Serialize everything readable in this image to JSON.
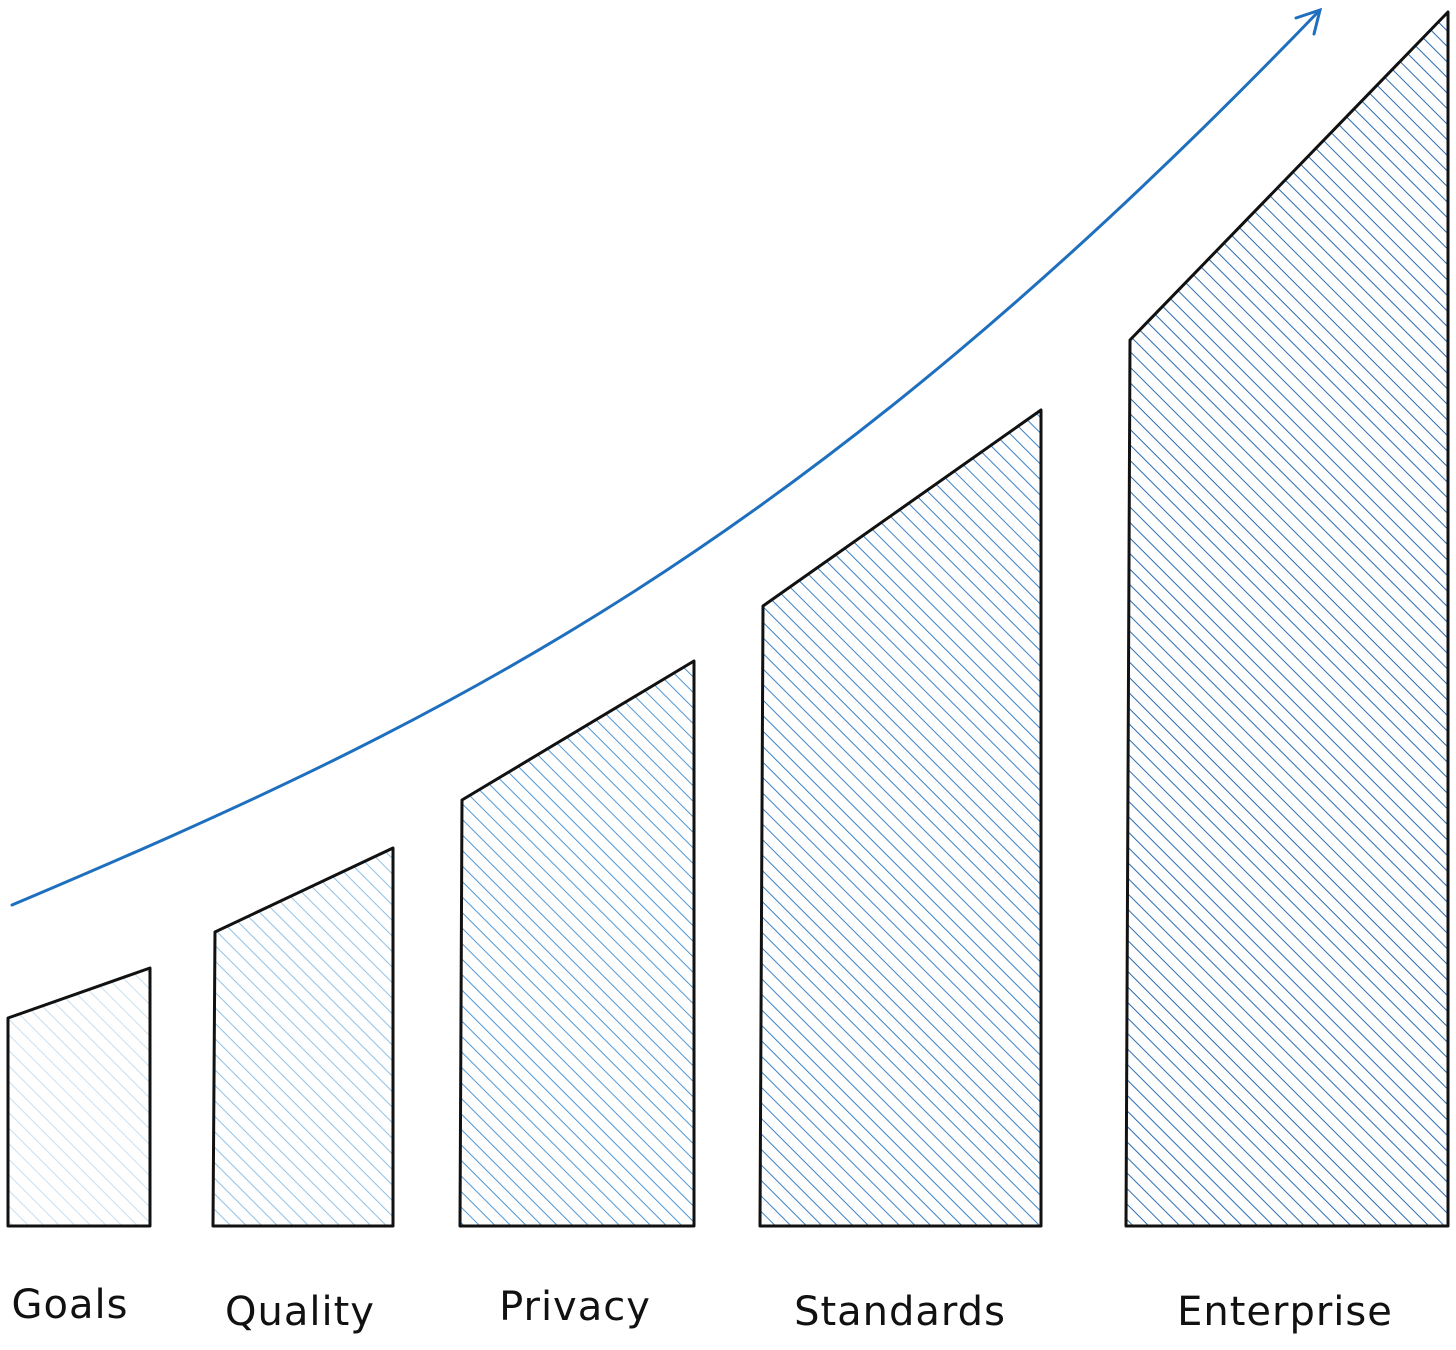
{
  "diagram": {
    "colors": {
      "outline": "#111111",
      "trend": "#1f6fbf",
      "hatch": [
        "#c9dff0",
        "#8fc2e6",
        "#4f97d4",
        "#3b82c4",
        "#2a6db0"
      ]
    },
    "stages": [
      {
        "label": "Goals",
        "level": 1
      },
      {
        "label": "Quality",
        "level": 2
      },
      {
        "label": "Privacy",
        "level": 3
      },
      {
        "label": "Standards",
        "level": 4
      },
      {
        "label": "Enterprise",
        "level": 5
      }
    ],
    "trend_arrow": "upward-curve-arrow"
  }
}
